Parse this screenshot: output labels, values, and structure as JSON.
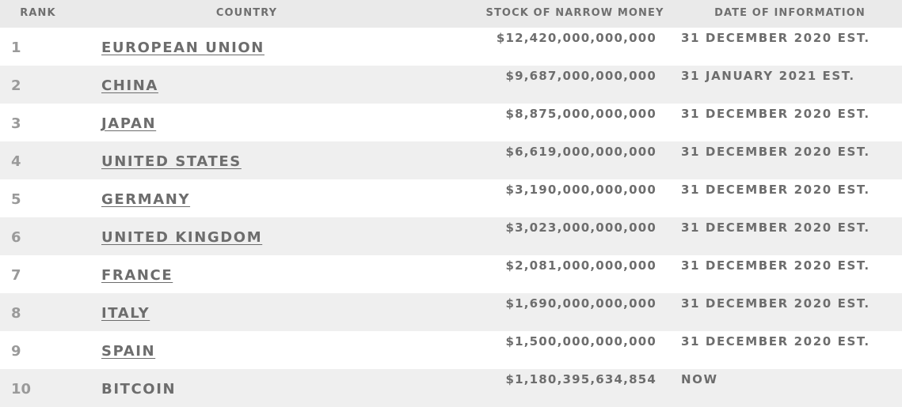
{
  "table": {
    "headers": {
      "rank": "RANK",
      "country": "COUNTRY",
      "stock": "STOCK OF NARROW MONEY",
      "date": "DATE OF INFORMATION"
    },
    "rows": [
      {
        "rank": "1",
        "country": "EUROPEAN UNION",
        "stock": "$12,420,000,000,000",
        "date": "31 DECEMBER 2020 EST.",
        "link": true
      },
      {
        "rank": "2",
        "country": "CHINA",
        "stock": "$9,687,000,000,000",
        "date": "31 JANUARY 2021 EST.",
        "link": true
      },
      {
        "rank": "3",
        "country": "JAPAN",
        "stock": "$8,875,000,000,000",
        "date": "31 DECEMBER 2020 EST.",
        "link": true
      },
      {
        "rank": "4",
        "country": "UNITED STATES",
        "stock": "$6,619,000,000,000",
        "date": "31 DECEMBER 2020 EST.",
        "link": true
      },
      {
        "rank": "5",
        "country": "GERMANY",
        "stock": "$3,190,000,000,000",
        "date": "31 DECEMBER 2020 EST.",
        "link": true
      },
      {
        "rank": "6",
        "country": "UNITED KINGDOM",
        "stock": "$3,023,000,000,000",
        "date": "31 DECEMBER 2020 EST.",
        "link": true
      },
      {
        "rank": "7",
        "country": "FRANCE",
        "stock": "$2,081,000,000,000",
        "date": "31 DECEMBER 2020 EST.",
        "link": true
      },
      {
        "rank": "8",
        "country": "ITALY",
        "stock": "$1,690,000,000,000",
        "date": "31 DECEMBER 2020 EST.",
        "link": true
      },
      {
        "rank": "9",
        "country": "SPAIN",
        "stock": "$1,500,000,000,000",
        "date": "31 DECEMBER 2020 EST.",
        "link": true
      },
      {
        "rank": "10",
        "country": "BITCOIN",
        "stock": "$1,180,395,634,854",
        "date": "NOW",
        "link": false
      }
    ]
  }
}
